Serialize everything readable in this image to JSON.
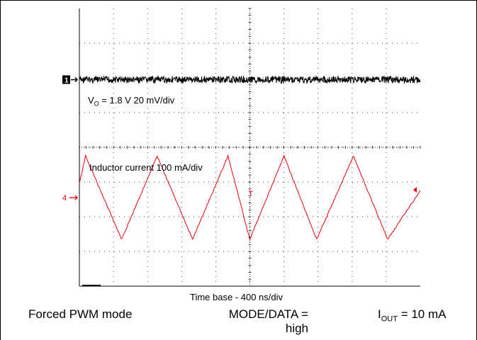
{
  "channels": {
    "ch1_marker": "1",
    "ch4_marker": "4",
    "ch1_label_prefix": "V",
    "ch1_label_sub": "O",
    "ch1_label_rest": " = 1.8 V 20 mV/div",
    "ch4_label": "Inductor current 100 mA/div",
    "trigger_marker": "T"
  },
  "timebase_label": "Time base - 400 ns/div",
  "captions": {
    "mode": "Forced PWM mode",
    "data_line1": "MODE/DATA =",
    "data_line2": "high",
    "iout_prefix": "I",
    "iout_sub": "OUT",
    "iout_rest": " = 10 mA"
  },
  "colors": {
    "ch1": "#000000",
    "ch4": "#e8000b",
    "grid": "#000000"
  },
  "chart_data": {
    "type": "line",
    "title": "",
    "xlabel": "Time base - 400 ns/div",
    "x_divisions": 10,
    "y_divisions": 8,
    "grid": true,
    "series": [
      {
        "name": "V_O = 1.8 V 20 mV/div",
        "color": "#000000",
        "kind": "noise",
        "offset_div": 0,
        "noise_div": 0.12
      },
      {
        "name": "Inductor current 100 mA/div",
        "color": "#e8000b",
        "kind": "triangle",
        "x": [
          0,
          0.18,
          1.24,
          2.28,
          3.32,
          4.36,
          5.0,
          6.0,
          6.96,
          8.04,
          9.04,
          10.0
        ],
        "y_div": [
          0.4,
          1.2,
          -1.2,
          1.2,
          -1.2,
          1.2,
          -1.2,
          1.2,
          -1.2,
          1.2,
          -1.2,
          0.2
        ],
        "peaks_x": [
          0.4,
          1.44,
          2.48,
          3.52,
          4.56,
          5.56,
          6.56,
          7.6,
          8.6,
          9.6
        ],
        "valleys_x": [
          0.92,
          1.96,
          3.0,
          4.04,
          5.04,
          6.08,
          7.08,
          8.12,
          9.12
        ],
        "peak_div": 1.15,
        "valley_div": -1.15,
        "offset_div": 0
      }
    ]
  }
}
